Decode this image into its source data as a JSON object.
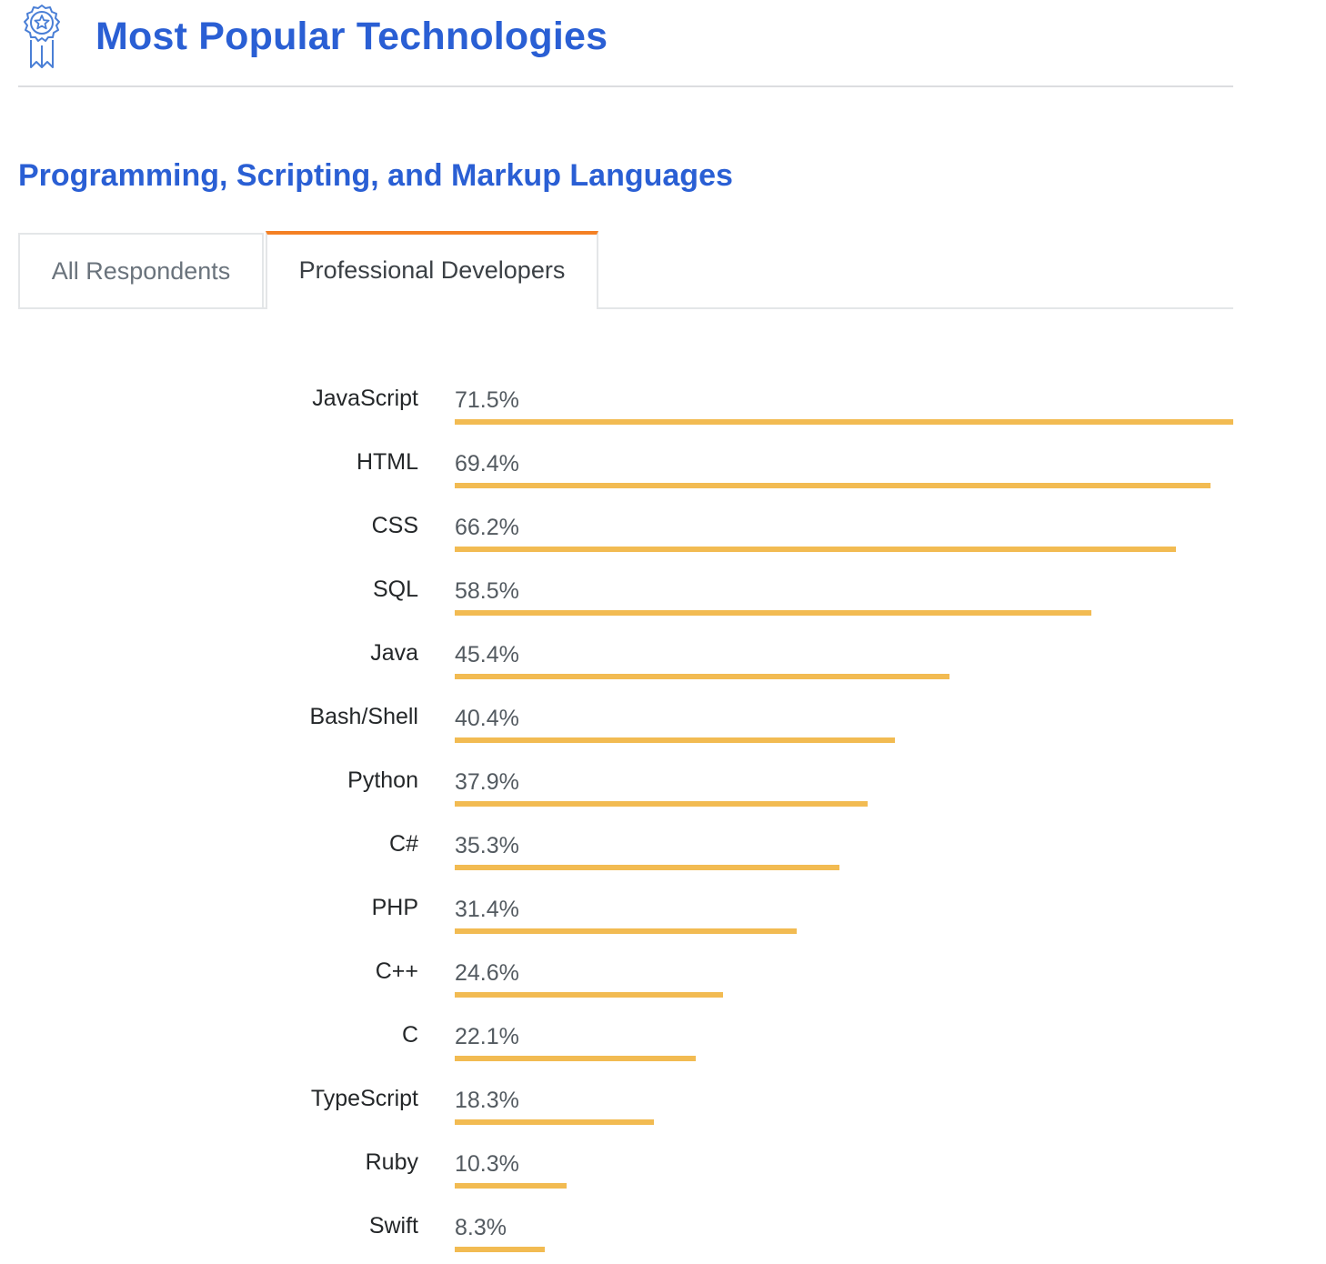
{
  "header": {
    "title": "Most Popular Technologies",
    "icon": "award-ribbon-icon"
  },
  "section": {
    "title": "Programming, Scripting, and Markup Languages"
  },
  "tabs": [
    {
      "label": "All Respondents",
      "active": false
    },
    {
      "label": "Professional Developers",
      "active": true
    }
  ],
  "colors": {
    "title": "#2a5fd4",
    "active_tab_accent": "#f48024",
    "bar": "#f2bb52"
  },
  "chart_data": {
    "type": "bar",
    "orientation": "horizontal",
    "title": "",
    "xlabel": "",
    "ylabel": "",
    "xlim": [
      0,
      71.5
    ],
    "grid": false,
    "categories": [
      "JavaScript",
      "HTML",
      "CSS",
      "SQL",
      "Java",
      "Bash/Shell",
      "Python",
      "C#",
      "PHP",
      "C++",
      "C",
      "TypeScript",
      "Ruby",
      "Swift"
    ],
    "values": [
      71.5,
      69.4,
      66.2,
      58.5,
      45.4,
      40.4,
      37.9,
      35.3,
      31.4,
      24.6,
      22.1,
      18.3,
      10.3,
      8.3
    ],
    "value_labels": [
      "71.5%",
      "69.4%",
      "66.2%",
      "58.5%",
      "45.4%",
      "40.4%",
      "37.9%",
      "35.3%",
      "31.4%",
      "24.6%",
      "22.1%",
      "18.3%",
      "10.3%",
      "8.3%"
    ]
  }
}
